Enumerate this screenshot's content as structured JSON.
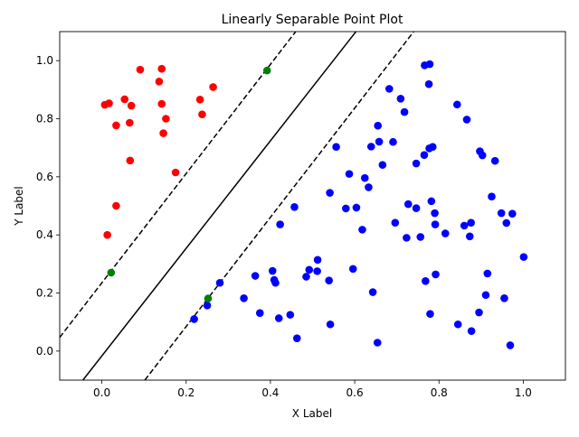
{
  "chart_data": {
    "type": "scatter",
    "title": "Linearly Separable Point Plot",
    "xlabel": "X Label",
    "ylabel": "Y Label",
    "xlim": [
      -0.1,
      1.1
    ],
    "ylim": [
      -0.1,
      1.1
    ],
    "xticks": [
      0.0,
      0.2,
      0.4,
      0.6,
      0.8,
      1.0
    ],
    "yticks": [
      0.0,
      0.2,
      0.4,
      0.6,
      0.8,
      1.0
    ],
    "xtick_labels": [
      "0.0",
      "0.2",
      "0.4",
      "0.6",
      "0.8",
      "1.0"
    ],
    "ytick_labels": [
      "0.0",
      "0.2",
      "0.4",
      "0.6",
      "0.8",
      "1.0"
    ],
    "grid": false,
    "series": [
      {
        "color": "#ff0000",
        "points": [
          [
            0.007,
            0.848
          ],
          [
            0.017,
            0.853
          ],
          [
            0.054,
            0.867
          ],
          [
            0.07,
            0.845
          ],
          [
            0.091,
            0.969
          ],
          [
            0.136,
            0.928
          ],
          [
            0.142,
            0.972
          ],
          [
            0.142,
            0.851
          ],
          [
            0.152,
            0.8
          ],
          [
            0.146,
            0.75
          ],
          [
            0.034,
            0.777
          ],
          [
            0.066,
            0.786
          ],
          [
            0.067,
            0.656
          ],
          [
            0.175,
            0.615
          ],
          [
            0.034,
            0.5
          ],
          [
            0.013,
            0.4
          ],
          [
            0.233,
            0.866
          ],
          [
            0.238,
            0.815
          ],
          [
            0.264,
            0.909
          ]
        ]
      },
      {
        "color": "#0000ff",
        "points": [
          [
            0.219,
            0.11
          ],
          [
            0.25,
            0.157
          ],
          [
            0.28,
            0.235
          ],
          [
            0.337,
            0.182
          ],
          [
            0.364,
            0.259
          ],
          [
            0.375,
            0.131
          ],
          [
            0.405,
            0.276
          ],
          [
            0.409,
            0.245
          ],
          [
            0.412,
            0.235
          ],
          [
            0.42,
            0.113
          ],
          [
            0.423,
            0.436
          ],
          [
            0.447,
            0.125
          ],
          [
            0.457,
            0.496
          ],
          [
            0.463,
            0.044
          ],
          [
            0.485,
            0.256
          ],
          [
            0.492,
            0.28
          ],
          [
            0.511,
            0.275
          ],
          [
            0.512,
            0.314
          ],
          [
            0.539,
            0.243
          ],
          [
            0.542,
            0.092
          ],
          [
            0.541,
            0.545
          ],
          [
            0.556,
            0.703
          ],
          [
            0.579,
            0.491
          ],
          [
            0.587,
            0.61
          ],
          [
            0.596,
            0.283
          ],
          [
            0.604,
            0.494
          ],
          [
            0.618,
            0.418
          ],
          [
            0.624,
            0.596
          ],
          [
            0.633,
            0.564
          ],
          [
            0.639,
            0.704
          ],
          [
            0.643,
            0.203
          ],
          [
            0.654,
            0.029
          ],
          [
            0.655,
            0.776
          ],
          [
            0.658,
            0.721
          ],
          [
            0.666,
            0.641
          ],
          [
            0.682,
            0.903
          ],
          [
            0.691,
            0.72
          ],
          [
            0.696,
            0.442
          ],
          [
            0.709,
            0.869
          ],
          [
            0.718,
            0.823
          ],
          [
            0.723,
            0.39
          ],
          [
            0.727,
            0.506
          ],
          [
            0.746,
            0.646
          ],
          [
            0.746,
            0.492
          ],
          [
            0.756,
            0.393
          ],
          [
            0.765,
            0.675
          ],
          [
            0.766,
            0.984
          ],
          [
            0.768,
            0.241
          ],
          [
            0.776,
            0.919
          ],
          [
            0.778,
            0.988
          ],
          [
            0.777,
            0.698
          ],
          [
            0.779,
            0.128
          ],
          [
            0.782,
            0.516
          ],
          [
            0.785,
            0.703
          ],
          [
            0.79,
            0.475
          ],
          [
            0.791,
            0.436
          ],
          [
            0.792,
            0.264
          ],
          [
            0.815,
            0.405
          ],
          [
            0.843,
            0.849
          ],
          [
            0.845,
            0.092
          ],
          [
            0.86,
            0.432
          ],
          [
            0.866,
            0.797
          ],
          [
            0.873,
            0.395
          ],
          [
            0.876,
            0.442
          ],
          [
            0.877,
            0.069
          ],
          [
            0.895,
            0.133
          ],
          [
            0.897,
            0.688
          ],
          [
            0.903,
            0.674
          ],
          [
            0.911,
            0.193
          ],
          [
            0.915,
            0.267
          ],
          [
            0.925,
            0.532
          ],
          [
            0.933,
            0.655
          ],
          [
            0.948,
            0.475
          ],
          [
            0.955,
            0.182
          ],
          [
            0.96,
            0.441
          ],
          [
            0.969,
            0.02
          ],
          [
            0.974,
            0.473
          ],
          [
            1.001,
            0.324
          ]
        ]
      },
      {
        "color": "#008000",
        "points": [
          [
            0.392,
            0.966
          ],
          [
            0.022,
            0.27
          ],
          [
            0.252,
            0.181
          ]
        ]
      }
    ],
    "lines": [
      {
        "style": "dashed",
        "points": [
          [
            -0.1,
            0.047
          ],
          [
            0.46,
            1.1
          ]
        ]
      },
      {
        "style": "solid",
        "points": [
          [
            -0.045,
            -0.1
          ],
          [
            0.603,
            1.1
          ]
        ]
      },
      {
        "style": "dashed",
        "points": [
          [
            0.102,
            -0.1
          ],
          [
            0.74,
            1.1
          ]
        ]
      }
    ]
  }
}
